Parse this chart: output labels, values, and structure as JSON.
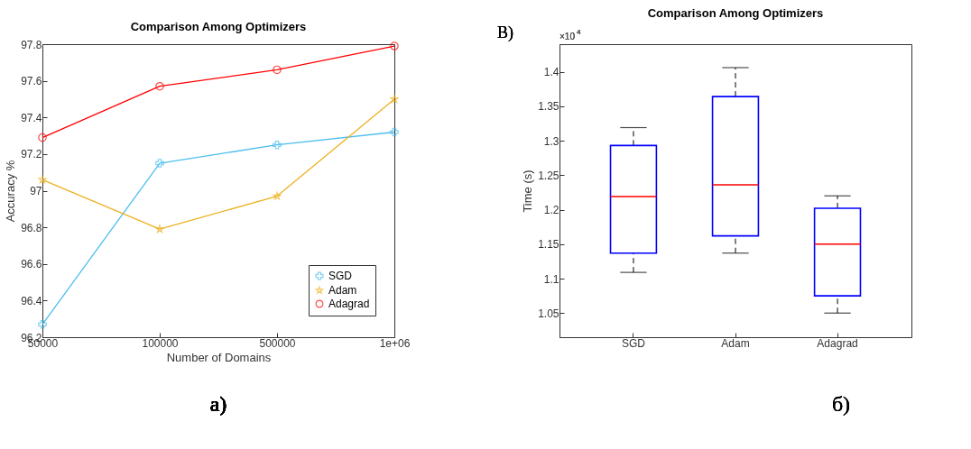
{
  "chart_data": [
    {
      "type": "line",
      "title": "Comparison Among Optimizers",
      "xlabel": "Number of Domains",
      "ylabel": "Accuracy %",
      "categories": [
        "50000",
        "100000",
        "500000",
        "1e+06"
      ],
      "series": [
        {
          "name": "SGD",
          "color": "#4dbeee",
          "marker": "cross",
          "values": [
            96.27,
            97.15,
            97.25,
            97.32
          ]
        },
        {
          "name": "Adam",
          "color": "#edb120",
          "marker": "star",
          "values": [
            97.06,
            96.79,
            96.97,
            97.5
          ]
        },
        {
          "name": "Adagrad",
          "color": "#ff0000",
          "marker": "circle",
          "values": [
            97.29,
            97.57,
            97.66,
            97.79
          ]
        }
      ],
      "ylim": [
        96.2,
        97.8
      ],
      "yticks": [
        96.2,
        96.4,
        96.6,
        96.8,
        97,
        97.2,
        97.4,
        97.6,
        97.8
      ],
      "grid": false,
      "legend": "bottom right",
      "line_style": "solid",
      "annotations": [
        "a)"
      ]
    },
    {
      "type": "box",
      "title": "Comparison Among Optimizers",
      "ylabel": "Time (s)",
      "categories": [
        "SGD",
        "Adam",
        "Adagrad"
      ],
      "series": [
        {
          "color": "#0000ff",
          "boxes": [
            {
              "low": 1.109,
              "q1": 1.137,
              "median": 1.219,
              "q3": 1.293,
              "high": 1.319
            },
            {
              "low": 1.137,
              "q1": 1.162,
              "median": 1.236,
              "q3": 1.364,
              "high": 1.406
            },
            {
              "low": 1.05,
              "q1": 1.075,
              "median": 1.15,
              "q3": 1.202,
              "high": 1.22
            }
          ]
        }
      ],
      "ylim": [
        1.015,
        1.44
      ],
      "yticks": [
        1.05,
        1.1,
        1.15,
        1.2,
        1.25,
        1.3,
        1.35,
        1.4
      ],
      "grid": false,
      "annotations": [
        "B)",
        "×10$^{4}$",
        "б)"
      ]
    }
  ]
}
